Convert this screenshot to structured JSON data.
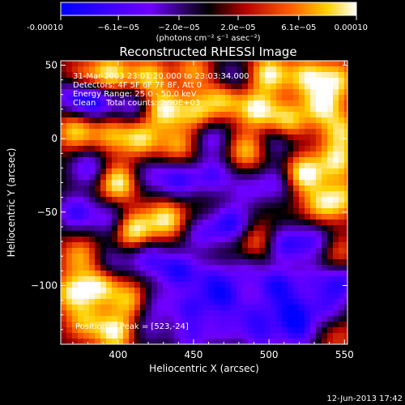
{
  "chart_data": {
    "type": "heatmap",
    "title": "Reconstructed RHESSI Image",
    "xlabel": "Heliocentric X (arcsec)",
    "ylabel": "Heliocentric Y (arcsec)",
    "xlim": [
      362,
      552
    ],
    "ylim": [
      -140,
      53
    ],
    "xticks": [
      400,
      450,
      500,
      550
    ],
    "yticks": [
      50,
      0,
      -50,
      -100
    ],
    "colorbar": {
      "label": "(photons cm⁻² s⁻¹ asec⁻²)",
      "range": [
        -0.0001,
        0.0001
      ],
      "tick_labels": [
        "-0.00010",
        "−6.1e−05",
        "−2.0e−05",
        "2.0e−05",
        "6.1e−05",
        "0.00010"
      ],
      "tick_values": [
        -0.0001,
        -6.1e-05,
        -2e-05,
        2e-05,
        6.1e-05,
        0.0001
      ]
    },
    "annotations": [
      "31-Mar-2003 23:01:20.000 to 23:03:34.000",
      "Detectors: 4F 5F 6F 7F 8F, Att 0",
      "Energy Range: 25.0 - 50.0 keV",
      "Clean    Total counts: 2.90E+03"
    ],
    "peak_label": "Position of Peak = [523,-24]",
    "peak": [
      523,
      -24
    ],
    "colormap": [
      "#0000ff",
      "#7000ff",
      "#000000",
      "#b00000",
      "#ff6000",
      "#ffd000",
      "#ffffff"
    ],
    "features": [
      {
        "x": 375,
        "y": 40,
        "v": 0.55
      },
      {
        "x": 395,
        "y": 44,
        "v": 0.85
      },
      {
        "x": 420,
        "y": 42,
        "v": 0.75
      },
      {
        "x": 450,
        "y": 46,
        "v": 0.55
      },
      {
        "x": 475,
        "y": 40,
        "v": -0.55
      },
      {
        "x": 500,
        "y": 44,
        "v": 0.9
      },
      {
        "x": 525,
        "y": 42,
        "v": 0.8
      },
      {
        "x": 545,
        "y": 40,
        "v": 0.75
      },
      {
        "x": 370,
        "y": 30,
        "v": -0.8
      },
      {
        "x": 385,
        "y": 25,
        "v": -0.9
      },
      {
        "x": 410,
        "y": 22,
        "v": -0.6
      },
      {
        "x": 430,
        "y": 20,
        "v": 0.9
      },
      {
        "x": 452,
        "y": 18,
        "v": 0.7
      },
      {
        "x": 470,
        "y": 28,
        "v": 0.8
      },
      {
        "x": 492,
        "y": 20,
        "v": 0.9
      },
      {
        "x": 512,
        "y": 12,
        "v": 0.8
      },
      {
        "x": 535,
        "y": 22,
        "v": 0.85
      },
      {
        "x": 548,
        "y": 5,
        "v": 0.7
      },
      {
        "x": 372,
        "y": 5,
        "v": 0.75
      },
      {
        "x": 395,
        "y": 3,
        "v": 0.6
      },
      {
        "x": 415,
        "y": 0,
        "v": 0.8
      },
      {
        "x": 440,
        "y": -5,
        "v": 0.6
      },
      {
        "x": 462,
        "y": 0,
        "v": -0.6
      },
      {
        "x": 485,
        "y": -8,
        "v": 0.7
      },
      {
        "x": 505,
        "y": -2,
        "v": -0.5
      },
      {
        "x": 523,
        "y": -24,
        "v": 1.0
      },
      {
        "x": 545,
        "y": -15,
        "v": 0.8
      },
      {
        "x": 380,
        "y": -20,
        "v": -0.7
      },
      {
        "x": 400,
        "y": -30,
        "v": 0.95
      },
      {
        "x": 420,
        "y": -25,
        "v": -0.5
      },
      {
        "x": 440,
        "y": -28,
        "v": -0.8
      },
      {
        "x": 463,
        "y": -25,
        "v": -0.7
      },
      {
        "x": 485,
        "y": -35,
        "v": -0.5
      },
      {
        "x": 505,
        "y": -30,
        "v": -0.6
      },
      {
        "x": 535,
        "y": -45,
        "v": 0.7
      },
      {
        "x": 550,
        "y": -40,
        "v": 0.6
      },
      {
        "x": 372,
        "y": -50,
        "v": -0.8
      },
      {
        "x": 395,
        "y": -55,
        "v": -0.6
      },
      {
        "x": 410,
        "y": -62,
        "v": 0.95
      },
      {
        "x": 432,
        "y": -55,
        "v": 0.85
      },
      {
        "x": 455,
        "y": -65,
        "v": -0.6
      },
      {
        "x": 475,
        "y": -58,
        "v": -0.9
      },
      {
        "x": 492,
        "y": -70,
        "v": 0.5
      },
      {
        "x": 510,
        "y": -72,
        "v": -0.8
      },
      {
        "x": 530,
        "y": -70,
        "v": -0.7
      },
      {
        "x": 545,
        "y": -78,
        "v": 0.45
      },
      {
        "x": 375,
        "y": -80,
        "v": 0.6
      },
      {
        "x": 395,
        "y": -85,
        "v": -0.5
      },
      {
        "x": 420,
        "y": -82,
        "v": -0.7
      },
      {
        "x": 440,
        "y": -90,
        "v": -0.9
      },
      {
        "x": 462,
        "y": -95,
        "v": -0.6
      },
      {
        "x": 485,
        "y": -90,
        "v": -0.5
      },
      {
        "x": 505,
        "y": -100,
        "v": -0.9
      },
      {
        "x": 528,
        "y": -95,
        "v": -0.5
      },
      {
        "x": 548,
        "y": -98,
        "v": -0.8
      },
      {
        "x": 370,
        "y": -105,
        "v": 0.8
      },
      {
        "x": 388,
        "y": -100,
        "v": 0.85
      },
      {
        "x": 408,
        "y": -110,
        "v": 0.7
      },
      {
        "x": 425,
        "y": -112,
        "v": -0.5
      },
      {
        "x": 448,
        "y": -115,
        "v": -0.7
      },
      {
        "x": 470,
        "y": -108,
        "v": -0.8
      },
      {
        "x": 490,
        "y": -120,
        "v": -0.6
      },
      {
        "x": 515,
        "y": -118,
        "v": -0.85
      },
      {
        "x": 538,
        "y": -115,
        "v": -0.6
      },
      {
        "x": 378,
        "y": -125,
        "v": 0.6
      },
      {
        "x": 398,
        "y": -132,
        "v": 0.9
      },
      {
        "x": 420,
        "y": -130,
        "v": -0.4
      },
      {
        "x": 448,
        "y": -135,
        "v": -0.6
      },
      {
        "x": 470,
        "y": -130,
        "v": -0.5
      },
      {
        "x": 495,
        "y": -135,
        "v": -0.6
      },
      {
        "x": 520,
        "y": -132,
        "v": -0.7
      },
      {
        "x": 545,
        "y": -135,
        "v": 0.3
      }
    ]
  },
  "timestamp": "12-Jun-2013 17:42"
}
